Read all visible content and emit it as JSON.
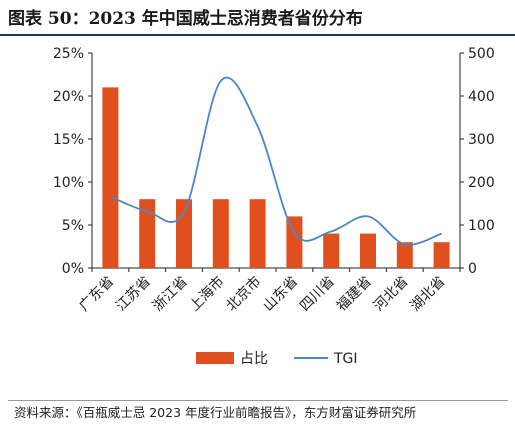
{
  "title": "图表 50：2023 年中国威士忌消费者省份分布",
  "source": "资料来源：《百瓶威士忌 2023 年度行业前瞻报告》，东方财富证券研究所",
  "colors": {
    "bar": "#e0501f",
    "line": "#4a86c8",
    "axis": "#222222"
  },
  "chart_data": {
    "type": "bar",
    "categories": [
      "广东省",
      "江苏省",
      "浙江省",
      "上海市",
      "北京市",
      "山东省",
      "四川省",
      "福建省",
      "河北省",
      "湖北省"
    ],
    "series": [
      {
        "name": "占比",
        "type": "bar",
        "axis": "left",
        "values": [
          21,
          8,
          8,
          8,
          8,
          6,
          4,
          4,
          3,
          3
        ]
      },
      {
        "name": "TGI",
        "type": "line",
        "axis": "right",
        "values": [
          166,
          132,
          130,
          435,
          330,
          82,
          85,
          120,
          55,
          80
        ]
      }
    ],
    "y_left": {
      "ylim": [
        0,
        25
      ],
      "ticks": [
        "0%",
        "5%",
        "10%",
        "15%",
        "20%",
        "25%"
      ]
    },
    "y_right": {
      "ylim": [
        0,
        500
      ],
      "ticks": [
        "0",
        "100",
        "200",
        "300",
        "400",
        "500"
      ]
    },
    "legend_position": "bottom"
  }
}
